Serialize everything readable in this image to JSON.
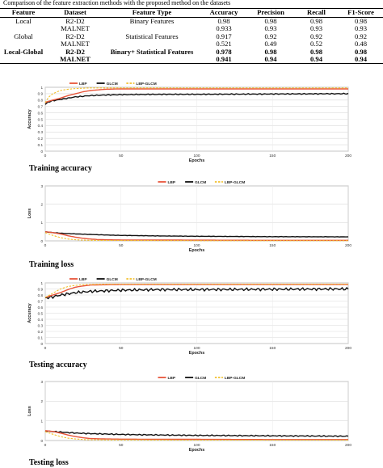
{
  "caption": "Comparison of the feature extraction methods with the proposed method on the datasets",
  "table": {
    "headers": [
      "Feature",
      "Dataset",
      "Feature Type",
      "Accuracy",
      "Precision",
      "Recall",
      "F1-Score"
    ],
    "rows": [
      {
        "feature": "Local",
        "dataset": "R2-D2",
        "type": "Binary Features",
        "accuracy": "0.98",
        "precision": "0.98",
        "recall": "0.98",
        "f1": "0.98",
        "bold": false
      },
      {
        "feature": "",
        "dataset": "MALNET",
        "type": "",
        "accuracy": "0.933",
        "precision": "0.93",
        "recall": "0.93",
        "f1": "0.93",
        "bold": false
      },
      {
        "feature": "Global",
        "dataset": "R2-D2",
        "type": "Statistical Features",
        "accuracy": "0.917",
        "precision": "0.92",
        "recall": "0.92",
        "f1": "0.92",
        "bold": false
      },
      {
        "feature": "",
        "dataset": "MALNET",
        "type": "",
        "accuracy": "0.521",
        "precision": "0.49",
        "recall": "0.52",
        "f1": "0.48",
        "bold": false
      },
      {
        "feature": "Local-Global",
        "dataset": "R2-D2",
        "type": "Binary+ Statistical Features",
        "accuracy": "0.978",
        "precision": "0.98",
        "recall": "0.98",
        "f1": "0.98",
        "bold": true
      },
      {
        "feature": "",
        "dataset": "MALNET",
        "type": "",
        "accuracy": "0.941",
        "precision": "0.94",
        "recall": "0.94",
        "f1": "0.94",
        "bold": true
      }
    ]
  },
  "colors": {
    "lbp": "#e8553a",
    "glcm": "#111111",
    "lbp_glcm": "#f2c12e"
  },
  "chart_data": [
    {
      "type": "line",
      "id": "training-accuracy",
      "subtitle": "Training accuracy",
      "xlabel": "Epochs",
      "ylabel": "Accuracy",
      "xlim": [
        0,
        200
      ],
      "ylim": [
        0,
        1
      ],
      "xticks": [
        0,
        50,
        100,
        150,
        200
      ],
      "yticks": [
        0,
        0.1,
        0.2,
        0.3,
        0.4,
        0.5,
        0.6,
        0.7,
        0.8,
        0.9,
        1
      ],
      "ytick_labels": [
        "0",
        "0.1",
        "0.2",
        "0.3",
        "0.4",
        "0.5",
        "0.6",
        "0.7",
        "0.8",
        "0.9",
        "1"
      ],
      "grid": true,
      "legend": "top-left",
      "series": [
        {
          "name": "LBP",
          "color": "#e8553a",
          "dash": "solid",
          "x": [
            0,
            2,
            5,
            10,
            15,
            20,
            25,
            30,
            35,
            40,
            50,
            75,
            100,
            150,
            200
          ],
          "y": [
            0.76,
            0.78,
            0.8,
            0.83,
            0.87,
            0.9,
            0.93,
            0.95,
            0.96,
            0.97,
            0.975,
            0.975,
            0.975,
            0.975,
            0.975
          ]
        },
        {
          "name": "GLCM",
          "color": "#111111",
          "dash": "solid",
          "noise": 0.008,
          "x": [
            0,
            2,
            5,
            10,
            15,
            20,
            25,
            30,
            40,
            50,
            75,
            100,
            150,
            200
          ],
          "y": [
            0.73,
            0.77,
            0.79,
            0.81,
            0.83,
            0.85,
            0.86,
            0.87,
            0.88,
            0.885,
            0.89,
            0.89,
            0.895,
            0.9
          ]
        },
        {
          "name": "LBP-GLCM",
          "color": "#f2c12e",
          "dash": "dashed",
          "x": [
            0,
            2,
            5,
            10,
            15,
            20,
            25,
            30,
            40,
            50,
            100,
            150,
            200
          ],
          "y": [
            0.76,
            0.84,
            0.9,
            0.95,
            0.97,
            0.98,
            0.985,
            0.99,
            0.99,
            0.99,
            0.99,
            0.99,
            0.99
          ]
        }
      ]
    },
    {
      "type": "line",
      "id": "training-loss",
      "subtitle": "Training loss",
      "xlabel": "Epochs",
      "ylabel": "Loss",
      "xlim": [
        0,
        200
      ],
      "ylim": [
        0,
        3
      ],
      "xticks": [
        0,
        50,
        100,
        150,
        200
      ],
      "yticks": [
        0,
        1,
        2,
        3
      ],
      "ytick_labels": [
        "0",
        "1",
        "2",
        "3"
      ],
      "grid": true,
      "legend": "top-center",
      "series": [
        {
          "name": "LBP",
          "color": "#e8553a",
          "dash": "solid",
          "x": [
            0,
            5,
            10,
            15,
            20,
            25,
            30,
            35,
            40,
            50,
            100,
            150,
            200
          ],
          "y": [
            0.5,
            0.45,
            0.38,
            0.28,
            0.2,
            0.14,
            0.1,
            0.07,
            0.06,
            0.05,
            0.04,
            0.03,
            0.03
          ]
        },
        {
          "name": "GLCM",
          "color": "#111111",
          "dash": "solid",
          "noise": 0.01,
          "x": [
            0,
            5,
            10,
            20,
            30,
            40,
            50,
            75,
            100,
            150,
            200
          ],
          "y": [
            0.5,
            0.45,
            0.42,
            0.38,
            0.35,
            0.32,
            0.3,
            0.27,
            0.25,
            0.23,
            0.22
          ]
        },
        {
          "name": "LBP-GLCM",
          "color": "#f2c12e",
          "dash": "dashed",
          "x": [
            0,
            5,
            10,
            15,
            20,
            25,
            30,
            40,
            50,
            100,
            200
          ],
          "y": [
            0.45,
            0.3,
            0.18,
            0.1,
            0.06,
            0.04,
            0.03,
            0.02,
            0.02,
            0.01,
            0.01
          ]
        }
      ]
    },
    {
      "type": "line",
      "id": "testing-accuracy",
      "subtitle": "Testing accuracy",
      "xlabel": "Epochs",
      "ylabel": "Accuracy",
      "xlim": [
        0,
        200
      ],
      "ylim": [
        0,
        1
      ],
      "xticks": [
        0,
        50,
        100,
        150,
        200
      ],
      "yticks": [
        0,
        0.1,
        0.2,
        0.3,
        0.4,
        0.5,
        0.6,
        0.7,
        0.8,
        0.9,
        1
      ],
      "ytick_labels": [
        "0",
        "0.1",
        "0.2",
        "0.3",
        "0.4",
        "0.5",
        "0.6",
        "0.7",
        "0.8",
        "0.9",
        "1"
      ],
      "grid": true,
      "legend": "top-left",
      "series": [
        {
          "name": "LBP",
          "color": "#e8553a",
          "dash": "solid",
          "x": [
            0,
            5,
            10,
            15,
            20,
            25,
            30,
            40,
            50,
            100,
            150,
            200
          ],
          "y": [
            0.76,
            0.8,
            0.84,
            0.89,
            0.93,
            0.95,
            0.965,
            0.97,
            0.975,
            0.975,
            0.975,
            0.975
          ]
        },
        {
          "name": "GLCM",
          "color": "#111111",
          "dash": "solid",
          "noise": 0.025,
          "x": [
            0,
            5,
            10,
            15,
            20,
            30,
            40,
            50,
            75,
            100,
            150,
            200
          ],
          "y": [
            0.75,
            0.77,
            0.8,
            0.82,
            0.84,
            0.86,
            0.87,
            0.88,
            0.89,
            0.89,
            0.895,
            0.9
          ]
        },
        {
          "name": "LBP-GLCM",
          "color": "#f2c12e",
          "dash": "dashed",
          "x": [
            0,
            5,
            10,
            15,
            20,
            25,
            30,
            40,
            50,
            100,
            150,
            200
          ],
          "y": [
            0.76,
            0.83,
            0.9,
            0.94,
            0.96,
            0.97,
            0.975,
            0.98,
            0.98,
            0.98,
            0.98,
            0.98
          ]
        }
      ]
    },
    {
      "type": "line",
      "id": "testing-loss",
      "subtitle": "Testing loss",
      "xlabel": "Epochs",
      "ylabel": "Loss",
      "xlim": [
        0,
        200
      ],
      "ylim": [
        0,
        3
      ],
      "xticks": [
        0,
        50,
        100,
        150,
        200
      ],
      "yticks": [
        0,
        1,
        2,
        3
      ],
      "ytick_labels": [
        "0",
        "1",
        "2",
        "3"
      ],
      "grid": true,
      "legend": "top-center",
      "series": [
        {
          "name": "LBP",
          "color": "#e8553a",
          "dash": "solid",
          "x": [
            0,
            5,
            10,
            15,
            20,
            25,
            30,
            40,
            50,
            100,
            150,
            200
          ],
          "y": [
            0.5,
            0.46,
            0.38,
            0.28,
            0.2,
            0.14,
            0.1,
            0.08,
            0.07,
            0.06,
            0.05,
            0.05
          ]
        },
        {
          "name": "GLCM",
          "color": "#111111",
          "dash": "solid",
          "noise": 0.03,
          "x": [
            0,
            5,
            10,
            20,
            30,
            40,
            50,
            75,
            100,
            150,
            200
          ],
          "y": [
            0.48,
            0.46,
            0.43,
            0.38,
            0.35,
            0.33,
            0.31,
            0.28,
            0.26,
            0.24,
            0.22
          ]
        },
        {
          "name": "LBP-GLCM",
          "color": "#f2c12e",
          "dash": "dashed",
          "x": [
            0,
            5,
            10,
            15,
            20,
            25,
            30,
            40,
            50,
            100,
            200
          ],
          "y": [
            0.45,
            0.32,
            0.2,
            0.12,
            0.08,
            0.05,
            0.04,
            0.03,
            0.03,
            0.02,
            0.02
          ]
        }
      ]
    }
  ]
}
